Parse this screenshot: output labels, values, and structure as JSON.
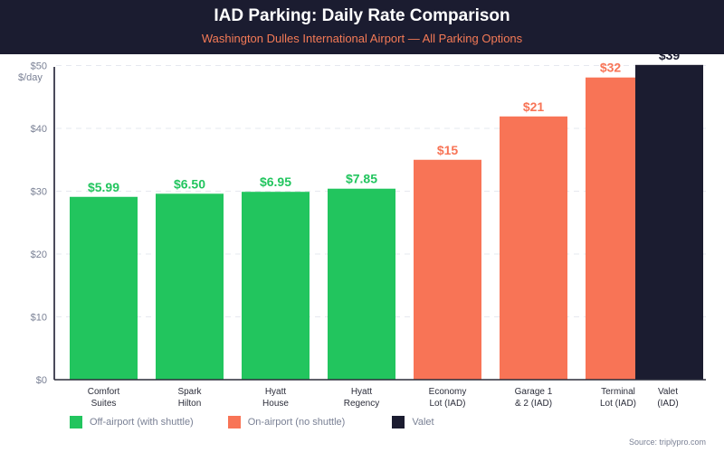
{
  "header": {
    "title": "IAD Parking: Daily Rate Comparison",
    "subtitle": "Washington Dulles International Airport — All Parking Options"
  },
  "chart_data": {
    "type": "bar",
    "title": "IAD Parking: Daily Rate Comparison",
    "subtitle": "Washington Dulles International Airport — All Parking Options",
    "ylabel": "$/day",
    "ylim": [
      0,
      50
    ],
    "yticks": [
      "$0",
      "$10",
      "$20",
      "$30",
      "$40",
      "$50"
    ],
    "grid": true,
    "legend_position": "bottom-left",
    "categories": [
      "Comfort Suites",
      "Spark Hilton",
      "Hyatt House",
      "Hyatt Regency",
      "Economy Lot (IAD)",
      "Garage 1 & 2 (IAD)",
      "Terminal Lot (IAD)",
      "Valet (IAD)"
    ],
    "category_lines": [
      [
        "Comfort",
        "Suites"
      ],
      [
        "Spark",
        "Hilton"
      ],
      [
        "Hyatt",
        "House"
      ],
      [
        "Hyatt",
        "Regency"
      ],
      [
        "Economy",
        "Lot (IAD)"
      ],
      [
        "Garage 1",
        "& 2 (IAD)"
      ],
      [
        "Terminal",
        "Lot (IAD)"
      ],
      [
        "Valet",
        "(IAD)"
      ]
    ],
    "data_labels": [
      "$5.99",
      "$6.50",
      "$6.95",
      "$7.85",
      "$15",
      "$21",
      "$32",
      "$39"
    ],
    "values": [
      5.99,
      6.5,
      6.95,
      7.85,
      15,
      21,
      32,
      39
    ],
    "bar_heights_on_axis": [
      29.1,
      29.6,
      29.9,
      30.4,
      35,
      41.9,
      48.1,
      50.1
    ],
    "groups": [
      "off",
      "off",
      "off",
      "off",
      "on",
      "on",
      "on",
      "valet"
    ],
    "colors": {
      "off": "#22c55e",
      "on": "#f87456",
      "valet": "#1b1c30"
    },
    "legend": [
      {
        "key": "off",
        "label": "Off-airport (with shuttle)"
      },
      {
        "key": "on",
        "label": "On-airport (no shuttle)"
      },
      {
        "key": "valet",
        "label": "Valet"
      }
    ]
  },
  "source": "Source: triplypro.com"
}
